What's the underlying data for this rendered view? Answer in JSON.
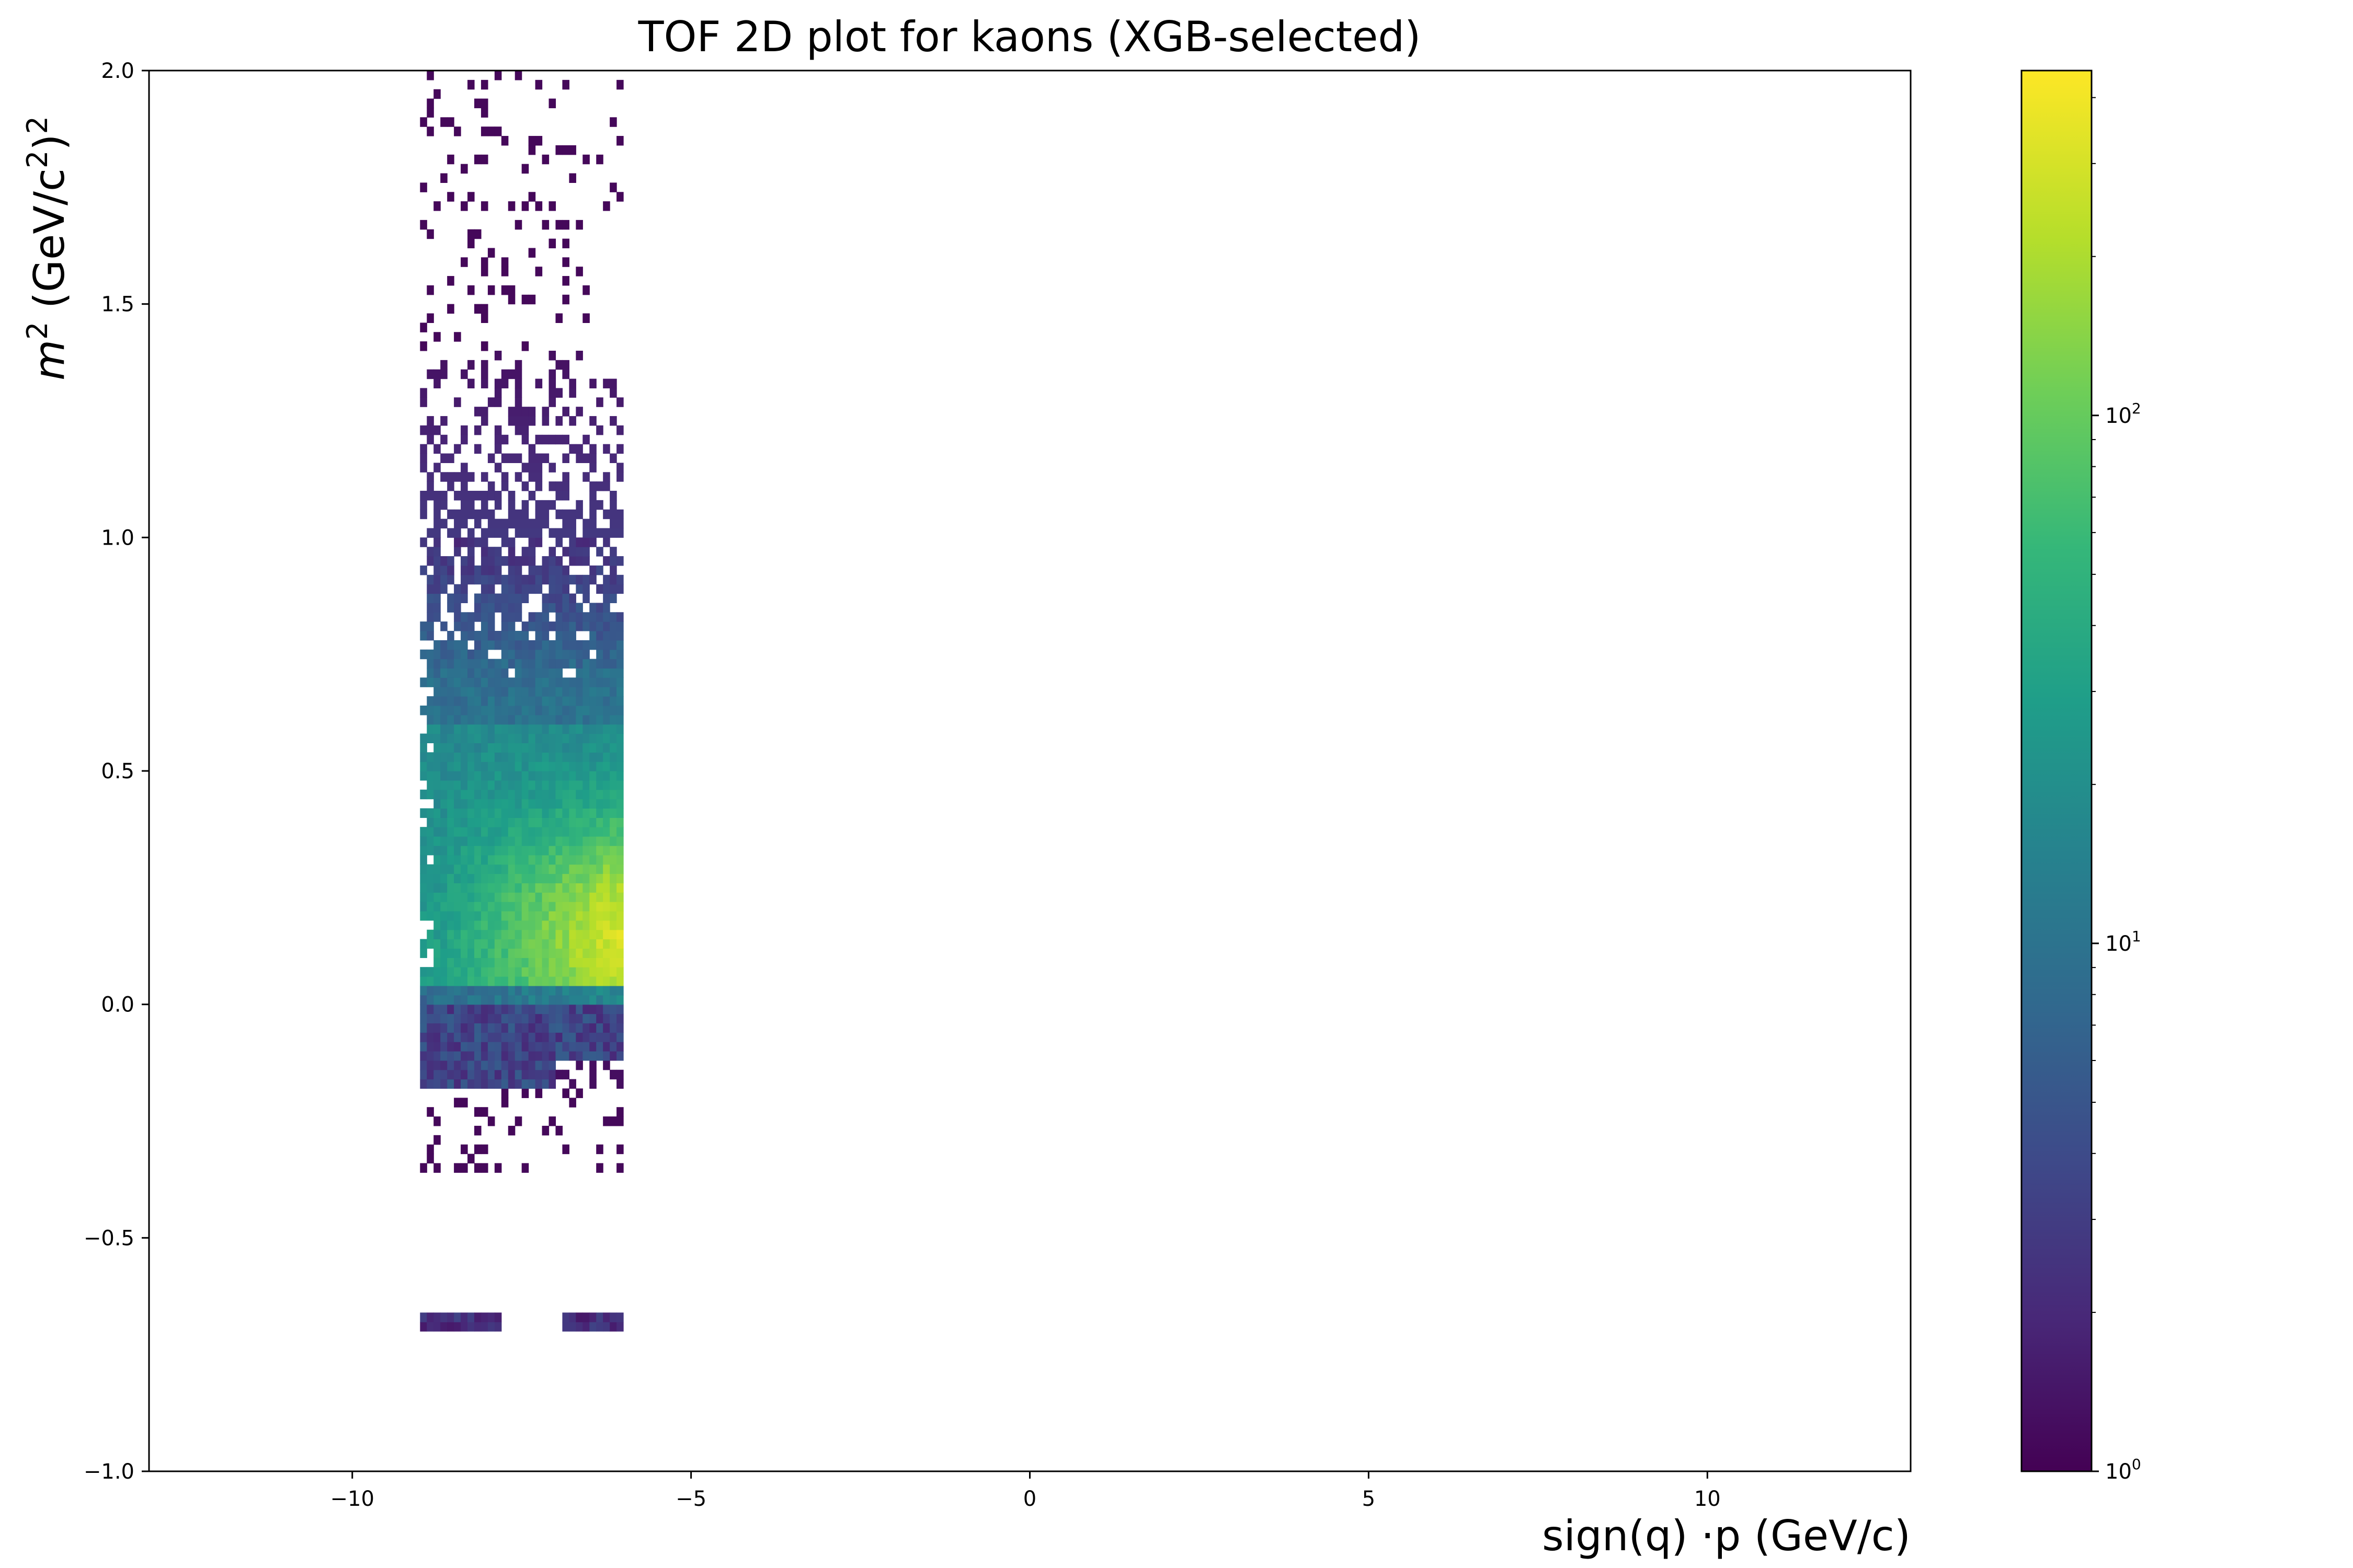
{
  "chart_data": {
    "type": "heatmap",
    "title": "TOF 2D plot for kaons (XGB-selected)",
    "xlabel": "sign(q) ·p (GeV/c)",
    "ylabel_base": "m",
    "ylabel_sup1": "2",
    "ylabel_mid": " (GeV/c",
    "ylabel_sup2": "2",
    "ylabel_end": ")",
    "ylabel_sup3": "2",
    "xlim": [
      -13,
      13
    ],
    "ylim": [
      -1.0,
      2.0
    ],
    "x_ticks": [
      {
        "value": -10,
        "label": "−10"
      },
      {
        "value": -5,
        "label": "−5"
      },
      {
        "value": 0,
        "label": "0"
      },
      {
        "value": 5,
        "label": "5"
      },
      {
        "value": 10,
        "label": "10"
      }
    ],
    "y_ticks": [
      {
        "value": -1.0,
        "label": "−1.0"
      },
      {
        "value": -0.5,
        "label": "−0.5"
      },
      {
        "value": 0.0,
        "label": "0.0"
      },
      {
        "value": 0.5,
        "label": "0.5"
      },
      {
        "value": 1.0,
        "label": "1.0"
      },
      {
        "value": 1.5,
        "label": "1.5"
      },
      {
        "value": 2.0,
        "label": "2.0"
      }
    ],
    "bins": {
      "x_start": -9.0,
      "x_end": -6.0,
      "x_count": 30,
      "y_start": -0.7,
      "y_end": 2.0,
      "y_count": 135
    },
    "colorbar": {
      "scale": "log",
      "colormap": "viridis",
      "min": 1,
      "max": 450,
      "ticks": [
        {
          "value": 1,
          "base": "10",
          "exp": "0"
        },
        {
          "value": 10,
          "base": "10",
          "exp": "1"
        },
        {
          "value": 100,
          "base": "10",
          "exp": "2"
        }
      ]
    },
    "colors": {
      "viridis": [
        "#440154",
        "#482878",
        "#3e4989",
        "#31688e",
        "#26828e",
        "#1f9e89",
        "#35b779",
        "#6ece58",
        "#b5de2b",
        "#fde725"
      ]
    }
  }
}
